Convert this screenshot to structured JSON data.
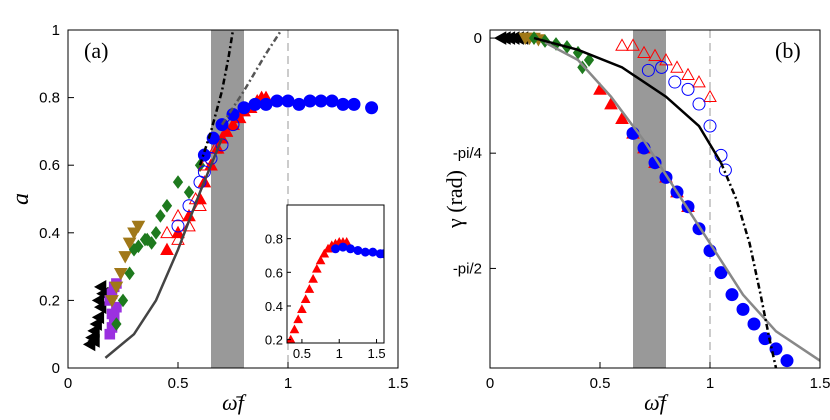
{
  "chart_data": [
    {
      "type": "scatter",
      "annotation": "(a)",
      "ylabel": "a",
      "xlabel": "ω̄f",
      "xlim": [
        0,
        1.5
      ],
      "ylim": [
        0,
        1
      ],
      "xticks": [
        0,
        0.5,
        1,
        1.5
      ],
      "yticks": [
        0,
        0.2,
        0.4,
        0.6,
        0.8,
        1
      ],
      "shade": [
        0.65,
        0.8
      ],
      "shade_color": "#999999",
      "vline": 1,
      "series": [
        {
          "marker": "tri-left",
          "filled": true,
          "color": "#000000",
          "x": [
            0.1,
            0.11,
            0.12,
            0.13,
            0.14,
            0.15,
            0.12,
            0.14,
            0.16,
            0.15
          ],
          "y": [
            0.07,
            0.09,
            0.11,
            0.13,
            0.15,
            0.18,
            0.08,
            0.2,
            0.22,
            0.24
          ]
        },
        {
          "marker": "square",
          "filled": true,
          "color": "#9b30e0",
          "x": [
            0.19,
            0.2,
            0.21,
            0.22,
            0.19,
            0.2,
            0.21,
            0.22,
            0.2
          ],
          "y": [
            0.1,
            0.12,
            0.15,
            0.18,
            0.2,
            0.22,
            0.24,
            0.25,
            0.16
          ]
        },
        {
          "marker": "tri-down",
          "filled": true,
          "color": "#a07818",
          "x": [
            0.2,
            0.22,
            0.24,
            0.26,
            0.28,
            0.3,
            0.32
          ],
          "y": [
            0.2,
            0.24,
            0.28,
            0.33,
            0.37,
            0.4,
            0.42
          ]
        },
        {
          "marker": "diamond",
          "filled": true,
          "color": "#1e7a1e",
          "x": [
            0.22,
            0.25,
            0.28,
            0.32,
            0.35,
            0.38,
            0.4,
            0.42,
            0.45,
            0.5,
            0.55,
            0.6,
            0.3,
            0.36
          ],
          "y": [
            0.13,
            0.2,
            0.28,
            0.36,
            0.38,
            0.37,
            0.4,
            0.45,
            0.48,
            0.55,
            0.52,
            0.6,
            0.35,
            0.38
          ]
        },
        {
          "marker": "tri-up",
          "filled": false,
          "color": "#ff0000",
          "x": [
            0.45,
            0.5,
            0.55,
            0.6,
            0.5,
            0.58,
            0.62,
            0.67,
            0.72
          ],
          "y": [
            0.4,
            0.38,
            0.42,
            0.48,
            0.45,
            0.5,
            0.6,
            0.65,
            0.7
          ]
        },
        {
          "marker": "tri-up",
          "filled": true,
          "color": "#ff0000",
          "x": [
            0.45,
            0.5,
            0.55,
            0.6,
            0.62,
            0.65,
            0.68,
            0.7,
            0.72,
            0.75,
            0.78,
            0.8,
            0.83,
            0.86,
            0.88,
            0.9
          ],
          "y": [
            0.35,
            0.4,
            0.45,
            0.5,
            0.55,
            0.6,
            0.65,
            0.68,
            0.7,
            0.72,
            0.74,
            0.76,
            0.77,
            0.79,
            0.8,
            0.8
          ]
        },
        {
          "marker": "circle",
          "filled": false,
          "color": "#0000ff",
          "x": [
            0.5,
            0.55,
            0.6,
            0.65,
            0.7,
            0.75,
            0.62
          ],
          "y": [
            0.42,
            0.48,
            0.55,
            0.62,
            0.66,
            0.72,
            0.58
          ]
        },
        {
          "marker": "circle",
          "filled": true,
          "color": "#0000ff",
          "x": [
            0.62,
            0.66,
            0.7,
            0.75,
            0.8,
            0.85,
            0.9,
            0.95,
            1.0,
            1.05,
            1.1,
            1.15,
            1.2,
            1.25,
            1.3,
            1.38
          ],
          "y": [
            0.63,
            0.68,
            0.72,
            0.75,
            0.77,
            0.78,
            0.78,
            0.79,
            0.79,
            0.78,
            0.79,
            0.79,
            0.79,
            0.78,
            0.78,
            0.77
          ]
        },
        {
          "line": "solid",
          "color": "#444444",
          "x": [
            0.17,
            0.3,
            0.4,
            0.5,
            0.6,
            0.7
          ],
          "y": [
            0.03,
            0.1,
            0.2,
            0.35,
            0.52,
            0.68
          ]
        },
        {
          "line": "dashdot",
          "color": "#000000",
          "x": [
            0.6,
            0.65,
            0.7,
            0.73,
            0.75
          ],
          "y": [
            0.6,
            0.7,
            0.82,
            0.92,
            1.0
          ]
        },
        {
          "line": "dashdot",
          "color": "#555555",
          "x": [
            0.7,
            0.8,
            0.9,
            0.97
          ],
          "y": [
            0.72,
            0.82,
            0.93,
            1.0
          ]
        }
      ]
    },
    {
      "type": "scatter",
      "annotation": "(b)",
      "ylabel": "γ (rad)",
      "xlabel": "ω̄f",
      "xlim": [
        0,
        1.5
      ],
      "ylim": [
        -2.25,
        0.055
      ],
      "xticks": [
        0,
        0.5,
        1,
        1.5
      ],
      "yticks": [
        0,
        {
          "value": -0.785,
          "label": "-pi/4"
        },
        {
          "value": -1.571,
          "label": "-pi/2"
        }
      ],
      "shade": [
        0.65,
        0.8
      ],
      "shade_color": "#999999",
      "vline": 1,
      "series": [
        {
          "marker": "tri-left",
          "filled": true,
          "color": "#000000",
          "x": [
            0.05,
            0.07,
            0.09,
            0.11,
            0.13,
            0.15
          ],
          "y": [
            0,
            0,
            0,
            0,
            0,
            0
          ]
        },
        {
          "marker": "tri-down",
          "filled": true,
          "color": "#a07818",
          "x": [
            0.16,
            0.18,
            0.2,
            0.22
          ],
          "y": [
            0,
            0,
            0,
            -0.01
          ]
        },
        {
          "marker": "diamond",
          "filled": true,
          "color": "#1e7a1e",
          "x": [
            0.2,
            0.25,
            0.3,
            0.35,
            0.4,
            0.45,
            0.42
          ],
          "y": [
            0,
            -0.02,
            -0.04,
            -0.06,
            -0.1,
            -0.15,
            -0.2
          ]
        },
        {
          "marker": "tri-up",
          "filled": false,
          "color": "#ff0000",
          "x": [
            0.6,
            0.65,
            0.7,
            0.75,
            0.8,
            0.85,
            0.9,
            0.95,
            1.0
          ],
          "y": [
            -0.05,
            -0.05,
            -0.1,
            -0.12,
            -0.15,
            -0.2,
            -0.25,
            -0.3,
            -0.4
          ]
        },
        {
          "marker": "circle",
          "filled": false,
          "color": "#0000ff",
          "x": [
            0.72,
            0.78,
            0.84,
            0.9,
            0.95,
            1.0,
            1.05,
            1.07
          ],
          "y": [
            -0.22,
            -0.2,
            -0.3,
            -0.35,
            -0.45,
            -0.6,
            -0.8,
            -0.9
          ]
        },
        {
          "marker": "tri-up",
          "filled": true,
          "color": "#ff0000",
          "x": [
            0.5,
            0.55,
            0.6,
            0.65,
            0.7,
            0.75,
            0.8,
            0.85,
            0.9
          ],
          "y": [
            -0.35,
            -0.45,
            -0.55,
            -0.65,
            -0.75,
            -0.85,
            -0.95,
            -1.05,
            -1.15
          ]
        },
        {
          "marker": "circle",
          "filled": true,
          "color": "#0000ff",
          "x": [
            0.65,
            0.7,
            0.75,
            0.8,
            0.85,
            0.9,
            0.95,
            1.0,
            1.05,
            1.1,
            1.15,
            1.2,
            1.25,
            1.3,
            1.35
          ],
          "y": [
            -0.65,
            -0.75,
            -0.85,
            -0.95,
            -1.05,
            -1.15,
            -1.3,
            -1.45,
            -1.6,
            -1.75,
            -1.85,
            -1.95,
            -2.05,
            -2.12,
            -2.2
          ]
        },
        {
          "line": "solid",
          "color": "#888888",
          "x": [
            0.25,
            0.4,
            0.55,
            0.7,
            0.85,
            1.0,
            1.15,
            1.3,
            1.5
          ],
          "y": [
            -0.03,
            -0.15,
            -0.4,
            -0.7,
            -1.05,
            -1.4,
            -1.75,
            -2.0,
            -2.2
          ]
        },
        {
          "line": "solid",
          "color": "#000000",
          "x": [
            0.2,
            0.4,
            0.6,
            0.8,
            0.95,
            1.05
          ],
          "y": [
            0,
            -0.08,
            -0.2,
            -0.4,
            -0.6,
            -0.85
          ]
        },
        {
          "line": "dashdot",
          "color": "#000000",
          "x": [
            1.05,
            1.12,
            1.18,
            1.23,
            1.27,
            1.3
          ],
          "y": [
            -0.85,
            -1.1,
            -1.4,
            -1.75,
            -2.05,
            -2.25
          ]
        }
      ]
    },
    {
      "type": "scatter",
      "xlim": [
        0.3,
        1.6
      ],
      "ylim": [
        0.18,
        1.0
      ],
      "xticks": [
        0.5,
        1,
        1.5
      ],
      "yticks": [
        0.2,
        0.4,
        0.6,
        0.8
      ],
      "series": [
        {
          "marker": "tri-up",
          "filled": true,
          "color": "#ff0000",
          "x": [
            0.35,
            0.4,
            0.45,
            0.5,
            0.55,
            0.6,
            0.65,
            0.7,
            0.75,
            0.8,
            0.85,
            0.9,
            0.95,
            1.0,
            1.05,
            1.1
          ],
          "y": [
            0.2,
            0.26,
            0.32,
            0.38,
            0.44,
            0.5,
            0.56,
            0.62,
            0.67,
            0.71,
            0.74,
            0.76,
            0.77,
            0.78,
            0.78,
            0.78
          ]
        },
        {
          "marker": "circle",
          "filled": true,
          "color": "#0000ff",
          "x": [
            0.95,
            1.05,
            1.15,
            1.25,
            1.35,
            1.45,
            1.55,
            1.6
          ],
          "y": [
            0.74,
            0.75,
            0.74,
            0.73,
            0.72,
            0.72,
            0.71,
            0.71
          ]
        }
      ]
    }
  ]
}
